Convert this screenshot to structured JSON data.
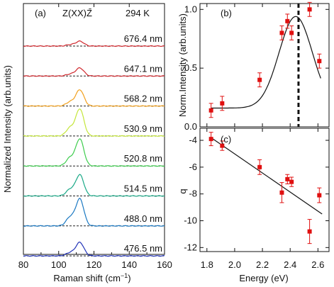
{
  "chart_data": [
    {
      "type": "line",
      "panel_label": "(a)",
      "geometry_label": "Z(XX)Z̄",
      "temperature_label": "294 K",
      "xlabel": "Raman shift (cm",
      "xlabel_sup": "−1",
      "xlabel_end": ")",
      "ylabel": "Normalized Intensity (arb.units)",
      "xlim": [
        80,
        160
      ],
      "xticks": [
        "80",
        "100",
        "120",
        "140",
        "160"
      ],
      "grid": false,
      "baselines": "dashed",
      "series": [
        {
          "name": "676.4 nm",
          "color": "#d0282e",
          "peak_x": 112.0,
          "peak_height": 0.18,
          "shoulder_height": 0.05
        },
        {
          "name": "647.1 nm",
          "color": "#d0282e",
          "peak_x": 112.0,
          "peak_height": 0.3,
          "shoulder_height": 0.07
        },
        {
          "name": "568.2 nm",
          "color": "#f2a01c",
          "peak_x": 112.0,
          "peak_height": 0.6,
          "shoulder_height": 0.15
        },
        {
          "name": "530.9 nm",
          "color": "#c4e63a",
          "peak_x": 112.0,
          "peak_height": 1.0,
          "shoulder_height": 0.3
        },
        {
          "name": "520.8 nm",
          "color": "#3ecd4e",
          "peak_x": 112.0,
          "peak_height": 1.0,
          "shoulder_height": 0.3
        },
        {
          "name": "514.5 nm",
          "color": "#1aa987",
          "peak_x": 112.0,
          "peak_height": 0.78,
          "shoulder_height": 0.24
        },
        {
          "name": "488.0 nm",
          "color": "#1a78c2",
          "peak_x": 112.0,
          "peak_height": 1.0,
          "shoulder_height": 0.32
        },
        {
          "name": "476.5 nm",
          "color": "#2233b8",
          "peak_x": 112.0,
          "peak_height": 0.5,
          "shoulder_height": 0.12
        }
      ]
    },
    {
      "type": "scatter",
      "panel_label": "(b)",
      "xlabel": "",
      "ylabel": "Norm.Intensity (arb.units)",
      "xlim": [
        1.75,
        2.68
      ],
      "ylim": [
        0,
        1.05
      ],
      "yticks": [
        "0.0",
        "0.5",
        "1.0"
      ],
      "grid": false,
      "color": "#e01010",
      "points": [
        {
          "x": 1.83,
          "y": 0.14,
          "err": 0.06
        },
        {
          "x": 1.91,
          "y": 0.2,
          "err": 0.06
        },
        {
          "x": 2.18,
          "y": 0.4,
          "err": 0.06
        },
        {
          "x": 2.34,
          "y": 0.8,
          "err": 0.06
        },
        {
          "x": 2.38,
          "y": 0.9,
          "err": 0.06
        },
        {
          "x": 2.41,
          "y": 0.8,
          "err": 0.06
        },
        {
          "x": 2.54,
          "y": 1.0,
          "err": 0.06
        },
        {
          "x": 2.61,
          "y": 0.56,
          "err": 0.06
        }
      ],
      "fit_curve": {
        "baseline": 0.16,
        "amplitude": 0.78,
        "center": 2.44,
        "width": 0.12
      },
      "vertical_line_x": 2.46
    },
    {
      "type": "scatter",
      "panel_label": "(c)",
      "xlabel": "Energy (eV)",
      "ylabel": "q",
      "xlim": [
        1.75,
        2.68
      ],
      "ylim": [
        -12.3,
        -3.1
      ],
      "xticks": [
        "1.8",
        "2.0",
        "2.2",
        "2.4",
        "2.6"
      ],
      "yticks": [
        "-4",
        "-6",
        "-8",
        "-10",
        "-12"
      ],
      "grid": false,
      "color": "#e01010",
      "points": [
        {
          "x": 1.83,
          "y": -3.9,
          "err": 0.5
        },
        {
          "x": 1.91,
          "y": -4.4,
          "err": 0.35
        },
        {
          "x": 2.18,
          "y": -6.0,
          "err": 0.55
        },
        {
          "x": 2.34,
          "y": -7.9,
          "err": 0.75
        },
        {
          "x": 2.38,
          "y": -6.9,
          "err": 0.35
        },
        {
          "x": 2.41,
          "y": -7.1,
          "err": 0.35
        },
        {
          "x": 2.54,
          "y": -10.8,
          "err": 0.9
        },
        {
          "x": 2.61,
          "y": -8.1,
          "err": 0.55
        }
      ],
      "fit_line": {
        "x": [
          1.83,
          2.63
        ],
        "y": [
          -3.8,
          -9.5
        ]
      }
    }
  ]
}
